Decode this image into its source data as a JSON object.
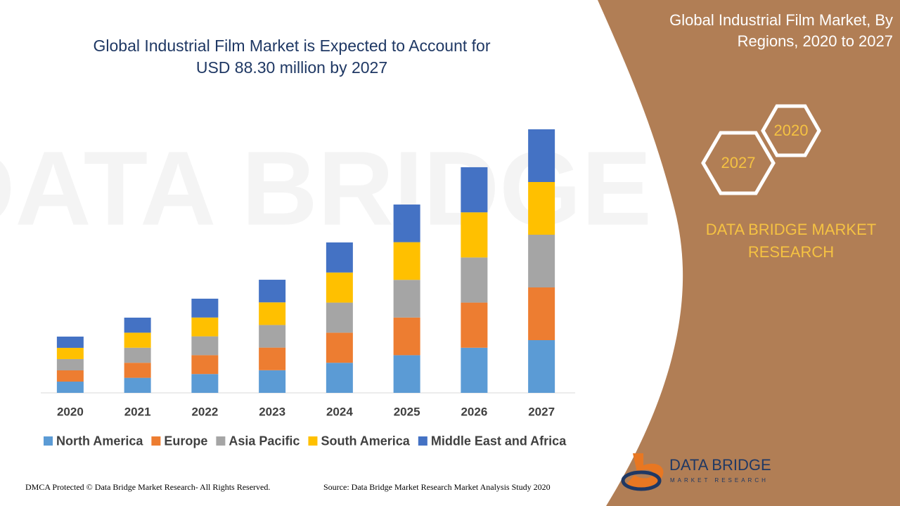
{
  "chart_data": {
    "type": "stacked-bar",
    "title": "Global Industrial Film Market is Expected to Account for USD 88.30 million by 2027",
    "categories": [
      "2020",
      "2021",
      "2022",
      "2023",
      "2024",
      "2025",
      "2026",
      "2027"
    ],
    "series": [
      {
        "name": "North America",
        "color": "#5b9bd5",
        "values": [
          3.77,
          5.04,
          6.31,
          7.58,
          10.08,
          12.62,
          15.12,
          17.66
        ]
      },
      {
        "name": "Europe",
        "color": "#ed7d31",
        "values": [
          3.77,
          5.04,
          6.31,
          7.58,
          10.08,
          12.62,
          15.12,
          17.66
        ]
      },
      {
        "name": "Asia Pacific",
        "color": "#a5a5a5",
        "values": [
          3.77,
          5.04,
          6.31,
          7.58,
          10.08,
          12.62,
          15.12,
          17.66
        ]
      },
      {
        "name": "South America",
        "color": "#ffc000",
        "values": [
          3.77,
          5.04,
          6.31,
          7.58,
          10.08,
          12.62,
          15.12,
          17.66
        ]
      },
      {
        "name": "Middle East and Africa",
        "color": "#4472c4",
        "values": [
          3.77,
          5.04,
          6.31,
          7.58,
          10.08,
          12.62,
          15.12,
          17.66
        ]
      }
    ],
    "legend": "bottom"
  },
  "sidebar": {
    "title": "Global Industrial Film Market, By Regions, 2020 to 2027",
    "hex_labels": [
      "2020",
      "2027"
    ],
    "brand": "DATA BRIDGE MARKET RESEARCH"
  },
  "logo": {
    "name": "DATA BRIDGE",
    "tagline": "MARKET RESEARCH"
  },
  "footer": {
    "copyright": "DMCA Protected © Data Bridge Market Research- All Rights Reserved.",
    "source": "Source: Data Bridge Market Research Market Analysis Study 2020"
  }
}
